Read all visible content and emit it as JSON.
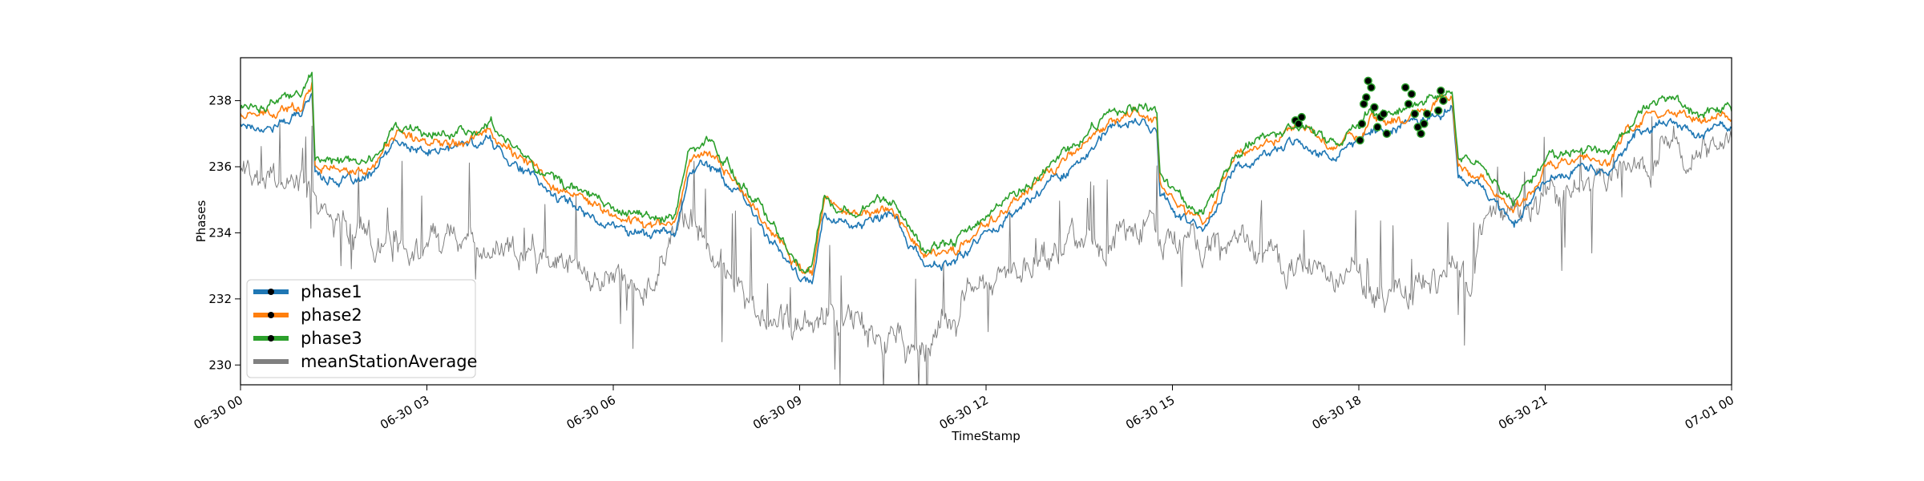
{
  "chart_data": {
    "type": "line",
    "xlabel": "TimeStamp",
    "ylabel": "Phases",
    "xlim": [
      "2023-06-30T00:00",
      "2023-07-01T00:00"
    ],
    "ylim": [
      229.4,
      239.3
    ],
    "x_ticks": [
      {
        "value": 0,
        "label": "06-30 00"
      },
      {
        "value": 3,
        "label": "06-30 03"
      },
      {
        "value": 6,
        "label": "06-30 06"
      },
      {
        "value": 9,
        "label": "06-30 09"
      },
      {
        "value": 12,
        "label": "06-30 12"
      },
      {
        "value": 15,
        "label": "06-30 15"
      },
      {
        "value": 18,
        "label": "06-30 18"
      },
      {
        "value": 21,
        "label": "06-30 21"
      },
      {
        "value": 24,
        "label": "07-01 00"
      }
    ],
    "y_ticks": [
      230,
      232,
      234,
      236,
      238
    ],
    "grid": false,
    "legend_position": "lower-left",
    "series": [
      {
        "name": "phase1",
        "color": "#1f77b4",
        "x_hours": [
          0,
          0.5,
          1.0,
          1.15,
          1.2,
          1.6,
          2.0,
          2.5,
          3.0,
          3.5,
          4.0,
          4.5,
          5.0,
          5.5,
          6.0,
          6.5,
          7.0,
          7.2,
          7.5,
          8.0,
          8.5,
          9.0,
          9.2,
          9.4,
          9.6,
          10.0,
          10.5,
          11.0,
          11.5,
          12.0,
          12.5,
          13.0,
          13.5,
          14.0,
          14.5,
          14.75,
          14.8,
          15.0,
          15.5,
          16.0,
          16.5,
          17.0,
          17.5,
          18.0,
          18.2,
          18.5,
          19.0,
          19.5,
          19.6,
          20.0,
          20.5,
          21.0,
          21.5,
          22.0,
          22.5,
          23.0,
          23.5,
          24.0
        ],
        "values": [
          237.3,
          237.2,
          237.6,
          238.3,
          235.8,
          235.6,
          235.5,
          236.7,
          236.4,
          236.6,
          236.8,
          236.0,
          235.2,
          234.7,
          234.2,
          234.0,
          234.0,
          235.8,
          236.2,
          235.2,
          233.9,
          232.6,
          232.4,
          234.7,
          234.4,
          234.2,
          234.5,
          233.0,
          233.1,
          234.0,
          234.7,
          235.5,
          236.2,
          237.1,
          237.4,
          237.0,
          235.3,
          234.7,
          234.0,
          236.0,
          236.3,
          236.9,
          236.3,
          236.6,
          237.2,
          237.1,
          237.5,
          237.8,
          235.8,
          235.3,
          234.3,
          235.6,
          236.0,
          235.8,
          237.1,
          237.4,
          237.0,
          237.2
        ]
      },
      {
        "name": "phase2",
        "color": "#ff7f0e",
        "x_hours": [
          0,
          0.5,
          1.0,
          1.15,
          1.2,
          1.6,
          2.0,
          2.5,
          3.0,
          3.5,
          4.0,
          4.5,
          5.0,
          5.5,
          6.0,
          6.5,
          7.0,
          7.2,
          7.5,
          8.0,
          8.5,
          9.0,
          9.2,
          9.4,
          9.6,
          10.0,
          10.5,
          11.0,
          11.5,
          12.0,
          12.5,
          13.0,
          13.5,
          14.0,
          14.5,
          14.75,
          14.8,
          15.0,
          15.5,
          16.0,
          16.5,
          17.0,
          17.5,
          18.0,
          18.2,
          18.5,
          19.0,
          19.5,
          19.6,
          20.0,
          20.5,
          21.0,
          21.5,
          22.0,
          22.5,
          23.0,
          23.5,
          24.0
        ],
        "values": [
          237.6,
          237.5,
          237.9,
          238.7,
          236.1,
          235.9,
          235.8,
          237.0,
          236.7,
          236.9,
          237.1,
          236.3,
          235.5,
          235.0,
          234.5,
          234.3,
          234.3,
          236.1,
          236.5,
          235.5,
          234.2,
          232.9,
          232.7,
          235.0,
          234.7,
          234.5,
          234.8,
          233.3,
          233.4,
          234.3,
          235.0,
          235.8,
          236.5,
          237.4,
          237.7,
          237.3,
          235.6,
          235.0,
          234.3,
          236.3,
          236.6,
          237.2,
          236.6,
          236.9,
          237.5,
          237.4,
          237.8,
          238.1,
          236.1,
          235.6,
          234.6,
          235.9,
          236.3,
          236.1,
          237.4,
          237.7,
          237.3,
          237.5
        ]
      },
      {
        "name": "phase3",
        "color": "#2ca02c",
        "x_hours": [
          0,
          0.5,
          1.0,
          1.15,
          1.2,
          1.6,
          2.0,
          2.5,
          3.0,
          3.5,
          4.0,
          4.5,
          5.0,
          5.5,
          6.0,
          6.5,
          7.0,
          7.2,
          7.5,
          8.0,
          8.5,
          9.0,
          9.2,
          9.4,
          9.6,
          10.0,
          10.5,
          11.0,
          11.5,
          12.0,
          12.5,
          13.0,
          13.5,
          14.0,
          14.5,
          14.75,
          14.8,
          15.0,
          15.5,
          16.0,
          16.5,
          17.0,
          17.5,
          18.0,
          18.2,
          18.5,
          19.0,
          19.5,
          19.6,
          20.0,
          20.5,
          21.0,
          21.5,
          22.0,
          22.5,
          23.0,
          23.5,
          24.0
        ],
        "values": [
          237.8,
          237.9,
          238.2,
          238.9,
          236.3,
          236.1,
          236.0,
          237.3,
          236.9,
          237.1,
          237.3,
          236.5,
          235.7,
          235.2,
          234.7,
          234.5,
          234.5,
          236.4,
          236.8,
          235.7,
          234.4,
          233.1,
          232.9,
          235.2,
          234.9,
          234.8,
          235.0,
          233.6,
          233.7,
          234.5,
          235.2,
          236.0,
          236.8,
          237.6,
          237.9,
          237.6,
          235.8,
          235.2,
          234.6,
          236.5,
          236.8,
          237.4,
          236.8,
          237.1,
          237.8,
          237.6,
          238.0,
          238.3,
          236.4,
          235.9,
          234.9,
          236.2,
          236.5,
          236.4,
          237.7,
          238.0,
          237.6,
          237.8
        ]
      },
      {
        "name": "meanStationAverage",
        "color": "#808080",
        "x_hours": [
          0,
          0.3,
          0.6,
          1.0,
          1.2,
          1.5,
          2.0,
          2.5,
          3.0,
          3.5,
          4.0,
          4.5,
          5.0,
          5.5,
          6.0,
          6.5,
          7.0,
          7.5,
          8.0,
          8.5,
          9.0,
          9.5,
          10.0,
          10.5,
          11.0,
          11.5,
          12.0,
          12.5,
          13.0,
          13.5,
          14.0,
          14.5,
          15.0,
          15.5,
          16.0,
          16.5,
          17.0,
          17.5,
          18.0,
          18.5,
          19.0,
          19.5,
          19.8,
          20.0,
          20.5,
          21.0,
          21.5,
          22.0,
          22.5,
          23.0,
          23.5,
          24.0
        ],
        "values": [
          236.0,
          235.4,
          235.2,
          235.8,
          234.9,
          234.3,
          234.2,
          233.6,
          233.4,
          233.9,
          234.0,
          233.5,
          233.0,
          232.8,
          232.5,
          232.2,
          234.5,
          234.0,
          232.5,
          231.5,
          230.9,
          231.5,
          231.3,
          231.0,
          230.5,
          231.5,
          232.5,
          232.8,
          233.4,
          233.6,
          233.9,
          234.1,
          233.8,
          233.4,
          233.5,
          233.3,
          233.0,
          233.0,
          232.5,
          232.0,
          232.5,
          233.0,
          232.6,
          234.3,
          234.8,
          235.2,
          235.7,
          235.6,
          236.2,
          236.8,
          236.4,
          236.6
        ]
      }
    ],
    "anomaly_points": {
      "series": "phase3",
      "color": "#2ca02c",
      "x_hours": [
        16.98,
        17.03,
        17.08,
        18.02,
        18.05,
        18.08,
        18.12,
        18.15,
        18.2,
        18.25,
        18.3,
        18.35,
        18.4,
        18.45,
        18.75,
        18.8,
        18.85,
        18.9,
        18.95,
        19.0,
        19.05,
        19.1,
        19.28,
        19.32,
        19.36
      ],
      "values": [
        237.4,
        237.3,
        237.5,
        236.8,
        237.3,
        237.9,
        238.1,
        238.6,
        238.4,
        237.8,
        237.2,
        237.5,
        237.6,
        237.0,
        238.4,
        237.9,
        238.2,
        237.6,
        237.2,
        237.0,
        237.3,
        237.6,
        237.7,
        238.3,
        238.0
      ]
    }
  }
}
